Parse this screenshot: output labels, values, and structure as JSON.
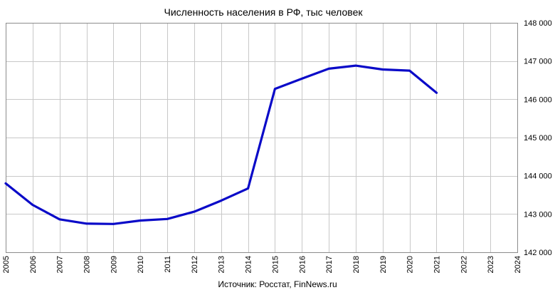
{
  "chart_data": {
    "type": "line",
    "title": "Численность населения в РФ, тыс человек",
    "source": "Источник: Росстат, FinNews.ru",
    "x_ticks": [
      "2005",
      "2006",
      "2007",
      "2008",
      "2009",
      "2010",
      "2011",
      "2012",
      "2013",
      "2014",
      "2015",
      "2016",
      "2017",
      "2018",
      "2019",
      "2020",
      "2021",
      "2022",
      "2023",
      "2024"
    ],
    "y_ticks": [
      "142 000",
      "143 000",
      "144 000",
      "145 000",
      "146 000",
      "147 000",
      "148 000"
    ],
    "ylim": [
      142000,
      148000
    ],
    "xlim": [
      2005,
      2024
    ],
    "y_axis_side": "right",
    "grid": true,
    "line_color": "#0a0ac8",
    "series": [
      {
        "x": [
          2005,
          2006,
          2007,
          2008,
          2009,
          2010,
          2011,
          2012,
          2013,
          2014,
          2015,
          2016,
          2017,
          2018,
          2019,
          2020,
          2021
        ],
        "values": [
          143800,
          143240,
          142860,
          142750,
          142740,
          142830,
          142870,
          143060,
          143350,
          143670,
          146270,
          146540,
          146800,
          146880,
          146780,
          146750,
          146170
        ]
      }
    ]
  }
}
